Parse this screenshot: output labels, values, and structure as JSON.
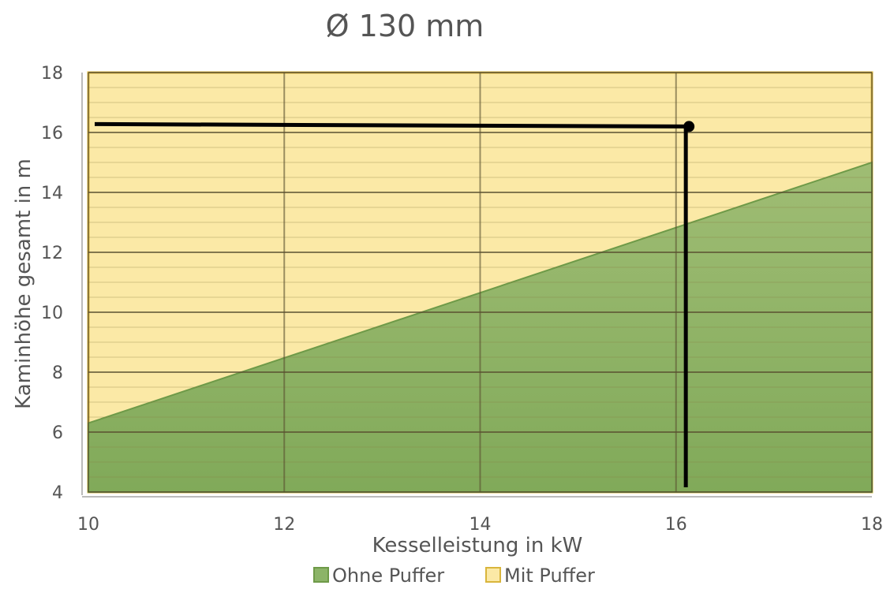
{
  "chart_data": {
    "type": "area",
    "title": "Ø 130 mm",
    "xlabel": "Kesselleistung in kW",
    "ylabel": "Kaminhöhe gesamt in m",
    "x": [
      10,
      18
    ],
    "xlim": [
      10,
      18
    ],
    "ylim": [
      4,
      18
    ],
    "xticks": [
      "10",
      "12",
      "14",
      "16",
      "18"
    ],
    "yticks": [
      "4",
      "6",
      "8",
      "10",
      "12",
      "14",
      "16",
      "18"
    ],
    "grid": true,
    "legend_position": "bottom",
    "series": [
      {
        "name": "Ohne Puffer",
        "values": [
          6.3,
          15.0
        ],
        "color": "#8cb468"
      },
      {
        "name": "Mit Puffer",
        "values": [
          18,
          18
        ],
        "color": "#fbe9a6"
      }
    ],
    "annotation": {
      "point_x": 16.1,
      "point_y": 16.2,
      "color": "#000000"
    }
  }
}
